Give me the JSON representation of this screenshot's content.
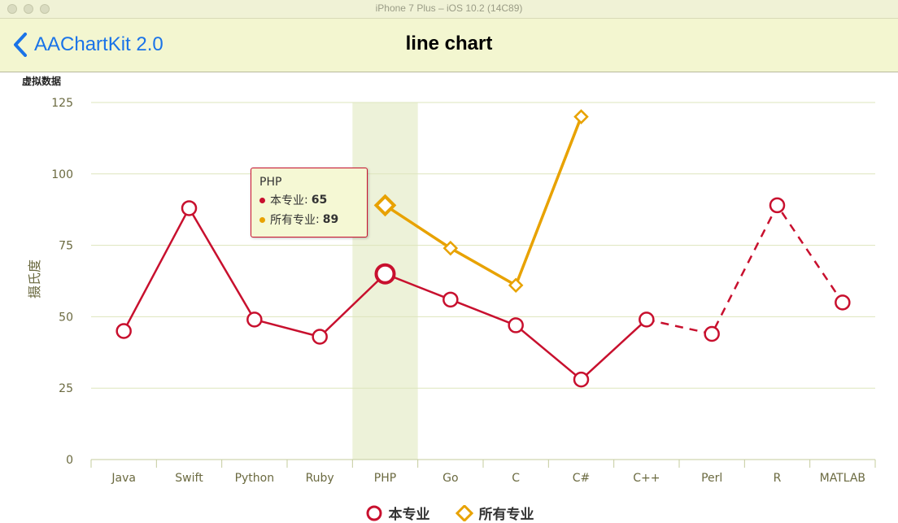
{
  "window": {
    "title": "iPhone 7 Plus – iOS 10.2 (14C89)"
  },
  "navbar": {
    "back_label": "AAChartKit 2.0",
    "title": "line chart"
  },
  "chart_data": {
    "type": "line",
    "subtitle": "虚拟数据",
    "ylabel": "摄氏度",
    "categories": [
      "Java",
      "Swift",
      "Python",
      "Ruby",
      "PHP",
      "Go",
      "C",
      "C#",
      "C++",
      "Perl",
      "R",
      "MATLAB"
    ],
    "yticks": [
      0,
      25,
      50,
      75,
      100,
      125
    ],
    "ylim": [
      0,
      125
    ],
    "highlight_category": "PHP",
    "series": [
      {
        "name": "本专业",
        "color": "#c8102e",
        "marker": "circle",
        "values": [
          45,
          88,
          49,
          43,
          65,
          56,
          47,
          28,
          49,
          44,
          89,
          55
        ],
        "dashed_from_index": 8
      },
      {
        "name": "所有专业",
        "color": "#e8a200",
        "marker": "diamond",
        "values": [
          null,
          null,
          null,
          null,
          89,
          74,
          61,
          120,
          null,
          null,
          null,
          null
        ]
      }
    ],
    "tooltip": {
      "title": "PHP",
      "rows": [
        {
          "label": "本专业",
          "value": "65",
          "color": "#c8102e"
        },
        {
          "label": "所有专业",
          "value": "89",
          "color": "#e8a200"
        }
      ]
    }
  }
}
